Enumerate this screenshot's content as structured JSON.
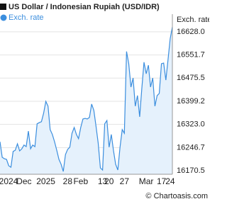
{
  "chart_data": {
    "type": "area-line",
    "title": "US Dollar / Indonesian Rupiah (USD/IDR)",
    "y_axis_label": "Exch. rate",
    "footer": "© Chartoasis.com",
    "categories": [
      null,
      null,
      null,
      "2024",
      null,
      null,
      null,
      null,
      null,
      null,
      null,
      "Dec",
      null,
      null,
      null,
      null,
      null,
      null,
      null,
      null,
      null,
      "2025",
      null,
      null,
      null,
      null,
      null,
      null,
      null,
      null,
      null,
      "28",
      null,
      null,
      null,
      null,
      null,
      "Feb",
      null,
      null,
      null,
      null,
      null,
      null,
      null,
      null,
      null,
      "13",
      null,
      null,
      "20",
      null,
      null,
      null,
      null,
      null,
      null,
      "27",
      null,
      null,
      null,
      null,
      null,
      null,
      null,
      null,
      null,
      "Mar",
      null,
      null,
      null,
      null,
      null,
      null,
      "17",
      null,
      null,
      null,
      "24",
      null
    ],
    "series": [
      {
        "name": "Exch. rate",
        "color": "#3b8ede",
        "fill": "#e5f1fc",
        "values": [
          16266,
          16215,
          16210,
          16208,
          16187,
          16182,
          16234,
          16238,
          16259,
          16236,
          16243,
          16255,
          16250,
          16301,
          16243,
          16255,
          16250,
          16325,
          16329,
          16332,
          16360,
          16399,
          16383,
          16306,
          16290,
          16266,
          16238,
          16208,
          16192,
          16168,
          16224,
          16241,
          16248,
          16294,
          16313,
          16290,
          16276,
          16313,
          16341,
          16343,
          16341,
          16346,
          16390,
          16369,
          16318,
          16262,
          16180,
          16173,
          16325,
          16336,
          16248,
          16290,
          16238,
          16192,
          16173,
          16248,
          16306,
          16294,
          16563,
          16523,
          16446,
          16476,
          16383,
          16418,
          16348,
          16441,
          16528,
          16490,
          16518,
          16446,
          16476,
          16383,
          16418,
          16425,
          16523,
          16525,
          16469,
          16535,
          16605,
          16644
        ]
      }
    ],
    "ylim": [
      16159,
      16686
    ],
    "yticks": [
      16170.5,
      16246.7,
      {
        "value": 16323,
        "label": "16323.0"
      },
      16399.2,
      16475.5,
      16551.7,
      {
        "value": 16628,
        "label": "16628.0"
      }
    ],
    "grid": true
  }
}
